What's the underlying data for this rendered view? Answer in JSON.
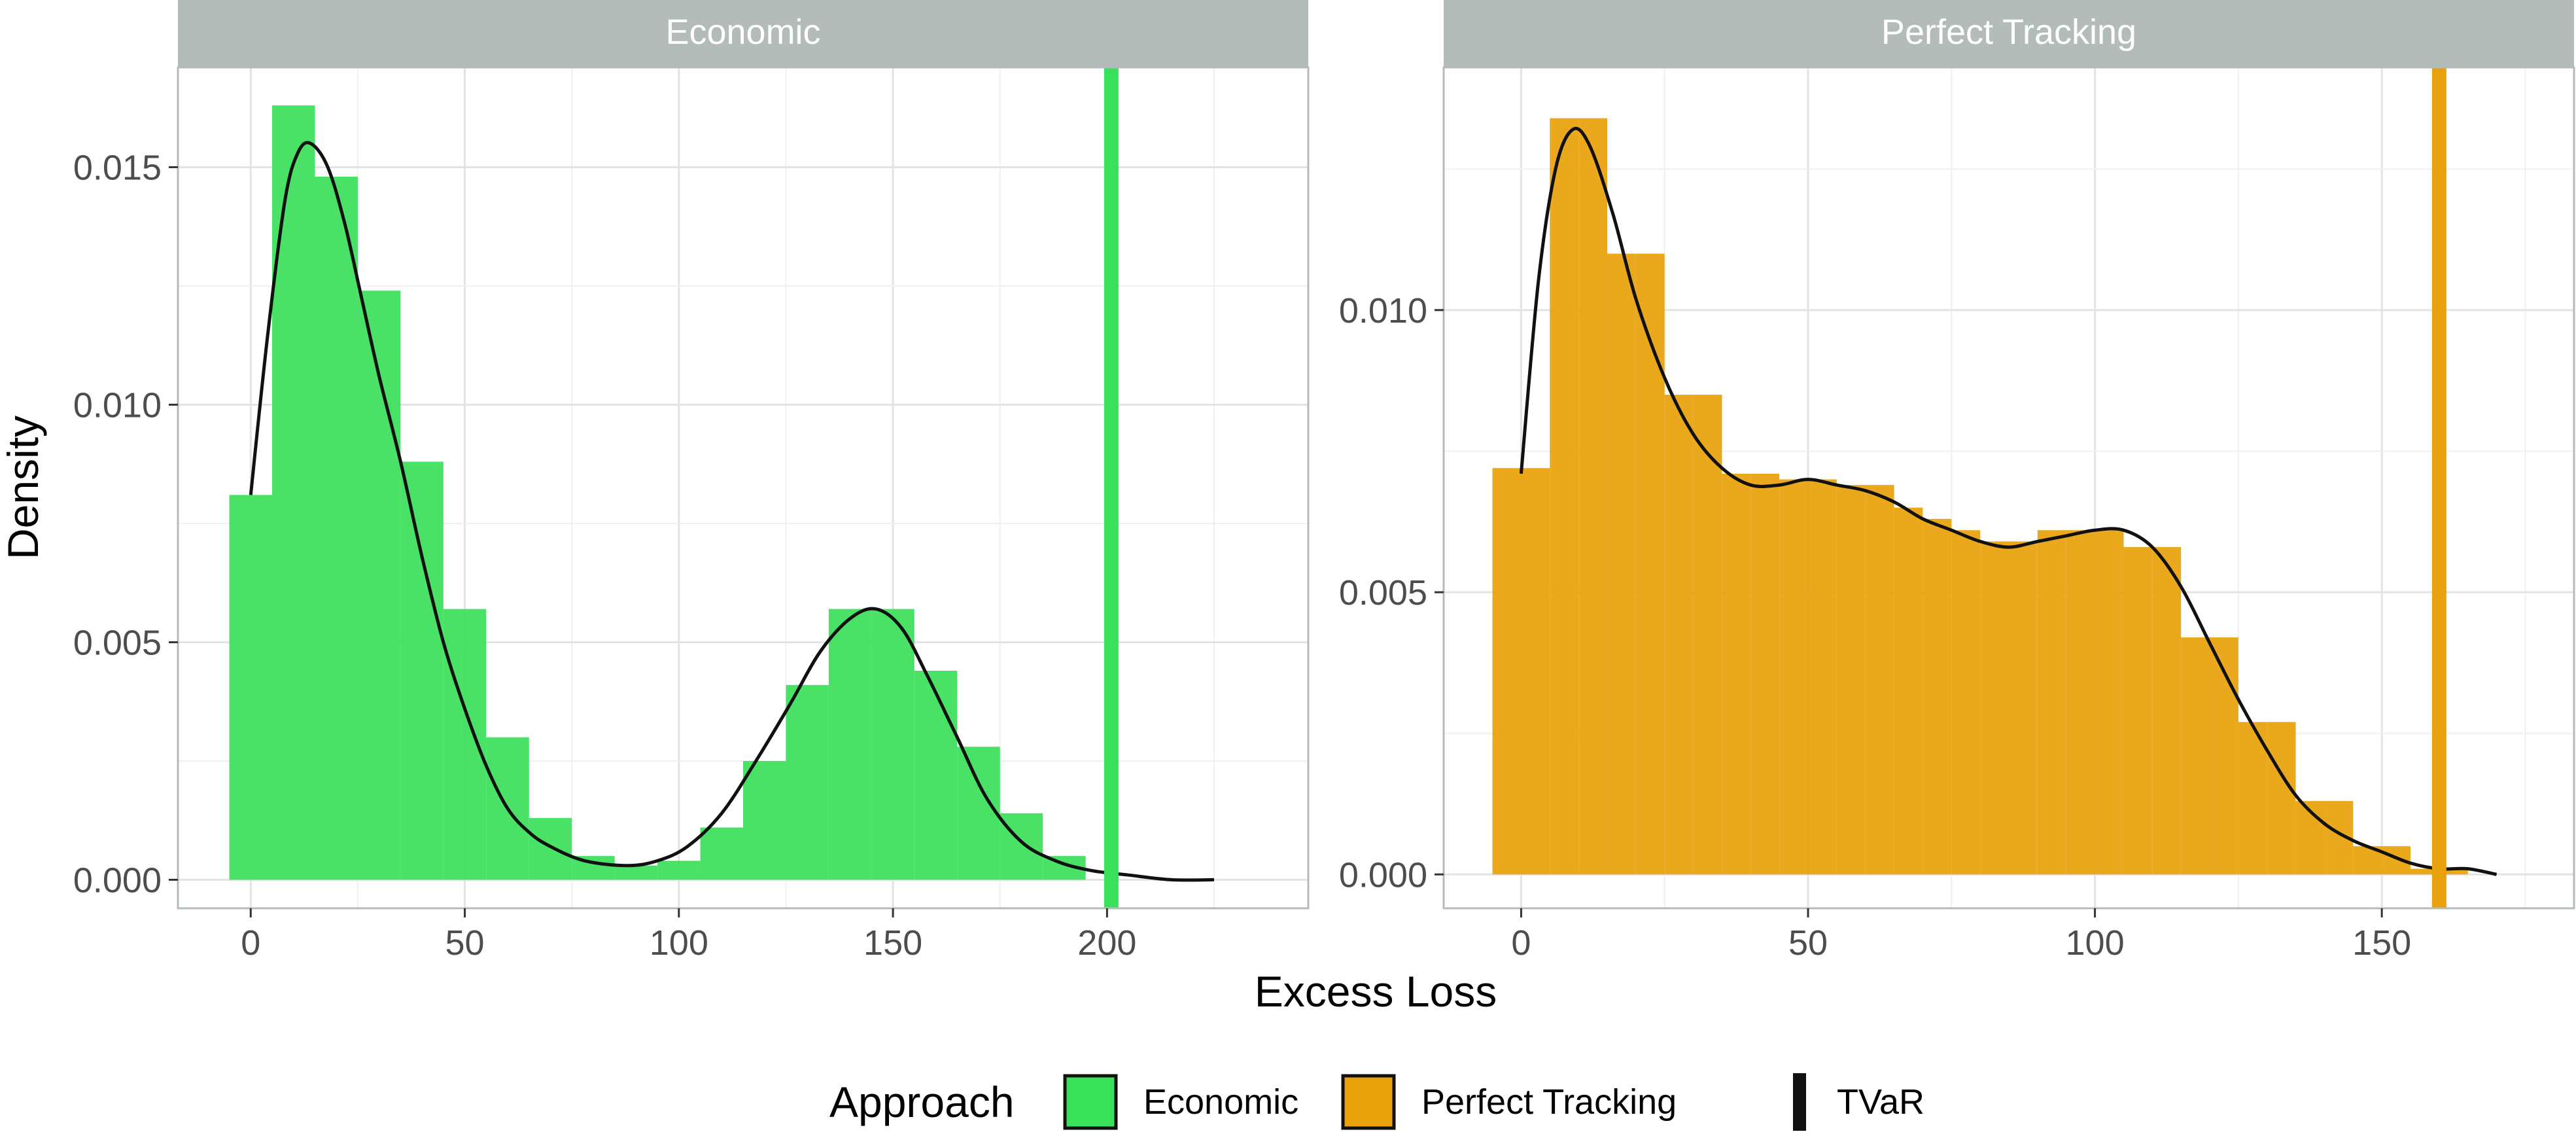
{
  "chart_data": {
    "type": "histogram",
    "layout": "faceted",
    "xlabel": "Excess Loss",
    "ylabel": "Density",
    "grid": true,
    "legend": {
      "title": "Approach",
      "position": "bottom",
      "entries": [
        {
          "label": "Economic",
          "color": "#39e05a",
          "kind": "fill"
        },
        {
          "label": "Perfect Tracking",
          "color": "#e8a10a",
          "kind": "fill"
        },
        {
          "label": "TVaR",
          "color": "#000000",
          "kind": "line"
        }
      ]
    },
    "panels": [
      {
        "title": "Economic",
        "color": "#39e05a",
        "series_name": "Economic",
        "xlim": [
          -17,
          247
        ],
        "ylim": [
          -0.0006,
          0.0171
        ],
        "xticks": [
          0,
          50,
          100,
          150,
          200
        ],
        "xtick_labels": [
          "0",
          "50",
          "100",
          "150",
          "200"
        ],
        "yticks": [
          0.0,
          0.005,
          0.01,
          0.015
        ],
        "ytick_labels": [
          "0.000",
          "0.005",
          "0.010",
          "0.015"
        ],
        "bin_width": 10,
        "bins": [
          {
            "x0": -5,
            "x1": 5,
            "density": 0.0081
          },
          {
            "x0": 5,
            "x1": 15,
            "density": 0.0163
          },
          {
            "x0": 15,
            "x1": 25,
            "density": 0.0148
          },
          {
            "x0": 25,
            "x1": 35,
            "density": 0.0124
          },
          {
            "x0": 35,
            "x1": 45,
            "density": 0.0088
          },
          {
            "x0": 45,
            "x1": 55,
            "density": 0.0057
          },
          {
            "x0": 55,
            "x1": 65,
            "density": 0.003
          },
          {
            "x0": 65,
            "x1": 75,
            "density": 0.0013
          },
          {
            "x0": 75,
            "x1": 85,
            "density": 0.0005
          },
          {
            "x0": 85,
            "x1": 95,
            "density": 0.0003
          },
          {
            "x0": 95,
            "x1": 105,
            "density": 0.0004
          },
          {
            "x0": 105,
            "x1": 115,
            "density": 0.0011
          },
          {
            "x0": 115,
            "x1": 125,
            "density": 0.0025
          },
          {
            "x0": 125,
            "x1": 135,
            "density": 0.0041
          },
          {
            "x0": 135,
            "x1": 145,
            "density": 0.0057
          },
          {
            "x0": 145,
            "x1": 155,
            "density": 0.0057
          },
          {
            "x0": 155,
            "x1": 165,
            "density": 0.0044
          },
          {
            "x0": 165,
            "x1": 175,
            "density": 0.0028
          },
          {
            "x0": 175,
            "x1": 185,
            "density": 0.0014
          },
          {
            "x0": 185,
            "x1": 195,
            "density": 0.0005
          }
        ],
        "density_curve": [
          [
            0,
            0.0081
          ],
          [
            4,
            0.0115
          ],
          [
            8,
            0.0143
          ],
          [
            11,
            0.0153
          ],
          [
            14,
            0.0155
          ],
          [
            18,
            0.015
          ],
          [
            22,
            0.0138
          ],
          [
            26,
            0.0122
          ],
          [
            30,
            0.0106
          ],
          [
            35,
            0.0088
          ],
          [
            40,
            0.0068
          ],
          [
            45,
            0.005
          ],
          [
            50,
            0.0036
          ],
          [
            55,
            0.0024
          ],
          [
            60,
            0.0015
          ],
          [
            65,
            0.001
          ],
          [
            70,
            0.0007
          ],
          [
            78,
            0.0004
          ],
          [
            88,
            0.0003
          ],
          [
            95,
            0.0004
          ],
          [
            102,
            0.0007
          ],
          [
            110,
            0.0014
          ],
          [
            118,
            0.0025
          ],
          [
            126,
            0.0037
          ],
          [
            133,
            0.0048
          ],
          [
            140,
            0.0055
          ],
          [
            146,
            0.0057
          ],
          [
            152,
            0.0053
          ],
          [
            158,
            0.0043
          ],
          [
            165,
            0.003
          ],
          [
            172,
            0.0017
          ],
          [
            180,
            0.0008
          ],
          [
            188,
            0.0004
          ],
          [
            196,
            0.0002
          ],
          [
            205,
            0.0001
          ],
          [
            215,
            0.0
          ],
          [
            225,
            0.0
          ]
        ],
        "tvar": 201
      },
      {
        "title": "Perfect Tracking",
        "color": "#e8a10a",
        "series_name": "Perfect Tracking",
        "xlim": [
          -13.5,
          183.5
        ],
        "ylim": [
          -0.0006,
          0.0143
        ],
        "xticks": [
          0,
          50,
          100,
          150
        ],
        "xtick_labels": [
          "0",
          "50",
          "100",
          "150"
        ],
        "yticks": [
          0.0,
          0.005,
          0.01
        ],
        "ytick_labels": [
          "0.000",
          "0.005",
          "0.010"
        ],
        "bin_width": 5,
        "bins": [
          {
            "x0": -5,
            "x1": 0,
            "density": 0.0072
          },
          {
            "x0": 0,
            "x1": 5,
            "density": 0.0072
          },
          {
            "x0": 5,
            "x1": 10,
            "density": 0.0134
          },
          {
            "x0": 10,
            "x1": 15,
            "density": 0.0134
          },
          {
            "x0": 15,
            "x1": 20,
            "density": 0.011
          },
          {
            "x0": 20,
            "x1": 25,
            "density": 0.011
          },
          {
            "x0": 25,
            "x1": 30,
            "density": 0.0085
          },
          {
            "x0": 30,
            "x1": 35,
            "density": 0.0085
          },
          {
            "x0": 35,
            "x1": 40,
            "density": 0.0071
          },
          {
            "x0": 40,
            "x1": 45,
            "density": 0.0071
          },
          {
            "x0": 45,
            "x1": 50,
            "density": 0.007
          },
          {
            "x0": 50,
            "x1": 55,
            "density": 0.007
          },
          {
            "x0": 55,
            "x1": 60,
            "density": 0.0069
          },
          {
            "x0": 60,
            "x1": 65,
            "density": 0.0069
          },
          {
            "x0": 65,
            "x1": 70,
            "density": 0.0065
          },
          {
            "x0": 70,
            "x1": 75,
            "density": 0.0063
          },
          {
            "x0": 75,
            "x1": 80,
            "density": 0.0061
          },
          {
            "x0": 80,
            "x1": 85,
            "density": 0.0059
          },
          {
            "x0": 85,
            "x1": 90,
            "density": 0.0059
          },
          {
            "x0": 90,
            "x1": 95,
            "density": 0.0061
          },
          {
            "x0": 95,
            "x1": 100,
            "density": 0.0061
          },
          {
            "x0": 100,
            "x1": 105,
            "density": 0.0061
          },
          {
            "x0": 105,
            "x1": 110,
            "density": 0.0058
          },
          {
            "x0": 110,
            "x1": 115,
            "density": 0.0058
          },
          {
            "x0": 115,
            "x1": 120,
            "density": 0.0042
          },
          {
            "x0": 120,
            "x1": 125,
            "density": 0.0042
          },
          {
            "x0": 125,
            "x1": 130,
            "density": 0.0027
          },
          {
            "x0": 130,
            "x1": 135,
            "density": 0.0027
          },
          {
            "x0": 135,
            "x1": 140,
            "density": 0.0013
          },
          {
            "x0": 140,
            "x1": 145,
            "density": 0.0013
          },
          {
            "x0": 145,
            "x1": 150,
            "density": 0.0005
          },
          {
            "x0": 150,
            "x1": 155,
            "density": 0.0005
          },
          {
            "x0": 155,
            "x1": 160,
            "density": 0.0001
          },
          {
            "x0": 160,
            "x1": 165,
            "density": 0.0001
          },
          {
            "x0": 165,
            "x1": 170,
            "density": 0.0
          },
          {
            "x0": 170,
            "x1": 175,
            "density": 0.0
          }
        ],
        "density_curve": [
          [
            0,
            0.0071
          ],
          [
            3,
            0.0105
          ],
          [
            6,
            0.0125
          ],
          [
            9,
            0.0132
          ],
          [
            12,
            0.0129
          ],
          [
            16,
            0.0117
          ],
          [
            20,
            0.0102
          ],
          [
            25,
            0.0088
          ],
          [
            30,
            0.0078
          ],
          [
            35,
            0.0072
          ],
          [
            40,
            0.0069
          ],
          [
            45,
            0.0069
          ],
          [
            50,
            0.007
          ],
          [
            55,
            0.0069
          ],
          [
            60,
            0.0068
          ],
          [
            65,
            0.0066
          ],
          [
            70,
            0.0063
          ],
          [
            75,
            0.0061
          ],
          [
            80,
            0.0059
          ],
          [
            85,
            0.0058
          ],
          [
            90,
            0.0059
          ],
          [
            95,
            0.006
          ],
          [
            100,
            0.0061
          ],
          [
            105,
            0.0061
          ],
          [
            110,
            0.0058
          ],
          [
            115,
            0.0051
          ],
          [
            120,
            0.0041
          ],
          [
            125,
            0.0031
          ],
          [
            130,
            0.0022
          ],
          [
            135,
            0.0014
          ],
          [
            140,
            0.0009
          ],
          [
            145,
            0.0006
          ],
          [
            150,
            0.0004
          ],
          [
            155,
            0.0002
          ],
          [
            160,
            0.0001
          ],
          [
            165,
            0.0001
          ],
          [
            170,
            0.0
          ]
        ],
        "tvar": 160
      }
    ]
  }
}
